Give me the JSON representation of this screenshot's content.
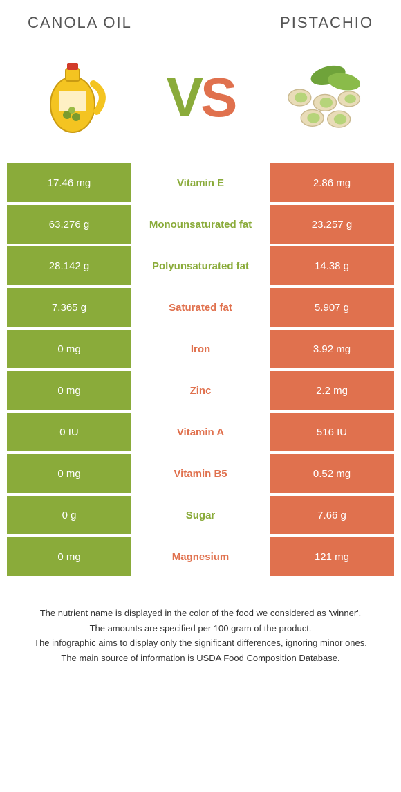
{
  "colors": {
    "left": "#8aab3a",
    "right": "#e0714e",
    "left_text": "#8aab3a",
    "right_text": "#e0714e"
  },
  "header": {
    "left": "Canola oil",
    "right": "Pistachio"
  },
  "vs": {
    "v": "V",
    "s": "S"
  },
  "rows": [
    {
      "left": "17.46 mg",
      "mid": "Vitamin E",
      "right": "2.86 mg",
      "winner": "left"
    },
    {
      "left": "63.276 g",
      "mid": "Monounsaturated fat",
      "right": "23.257 g",
      "winner": "left"
    },
    {
      "left": "28.142 g",
      "mid": "Polyunsaturated fat",
      "right": "14.38 g",
      "winner": "left"
    },
    {
      "left": "7.365 g",
      "mid": "Saturated fat",
      "right": "5.907 g",
      "winner": "right"
    },
    {
      "left": "0 mg",
      "mid": "Iron",
      "right": "3.92 mg",
      "winner": "right"
    },
    {
      "left": "0 mg",
      "mid": "Zinc",
      "right": "2.2 mg",
      "winner": "right"
    },
    {
      "left": "0 IU",
      "mid": "Vitamin A",
      "right": "516 IU",
      "winner": "right"
    },
    {
      "left": "0 mg",
      "mid": "Vitamin B5",
      "right": "0.52 mg",
      "winner": "right"
    },
    {
      "left": "0 g",
      "mid": "Sugar",
      "right": "7.66 g",
      "winner": "left"
    },
    {
      "left": "0 mg",
      "mid": "Magnesium",
      "right": "121 mg",
      "winner": "right"
    }
  ],
  "footnotes": [
    "The nutrient name is displayed in the color of the food we considered as 'winner'.",
    "The amounts are specified per 100 gram of the product.",
    "The infographic aims to display only the significant differences, ignoring minor ones.",
    "The main source of information is USDA Food Composition Database."
  ]
}
